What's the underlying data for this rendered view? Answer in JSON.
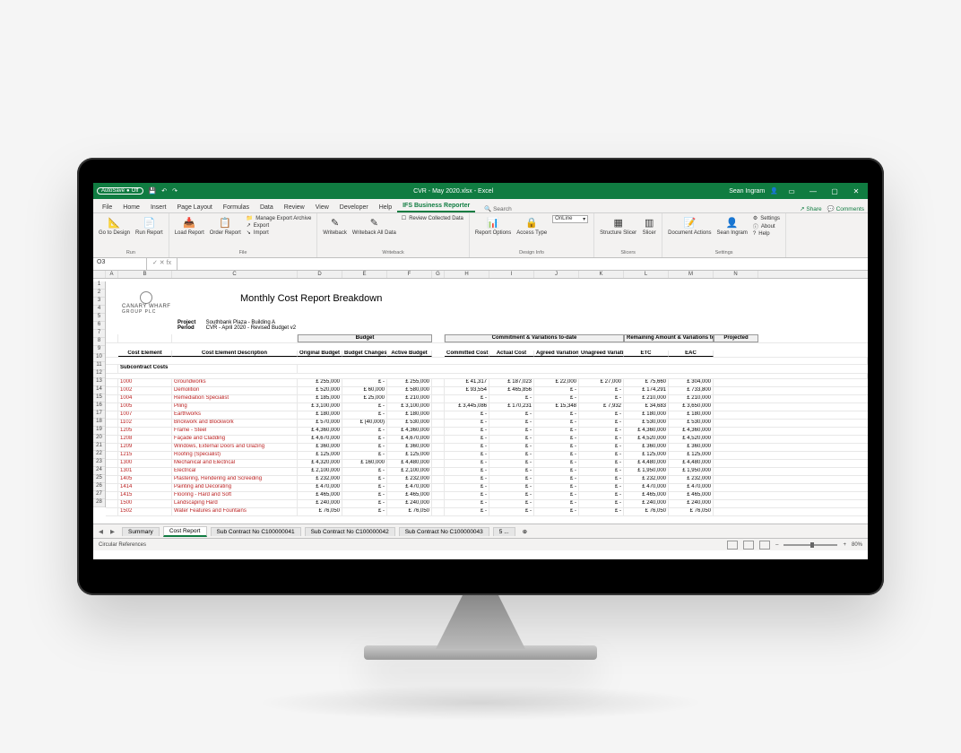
{
  "titlebar": {
    "autosave": "AutoSave",
    "autosave_state": "Off",
    "filename": "CVR - May 2020.xlsx - Excel",
    "user": "Sean Ingram"
  },
  "tabs": [
    "File",
    "Home",
    "Insert",
    "Page Layout",
    "Formulas",
    "Data",
    "Review",
    "View",
    "Developer",
    "Help",
    "IFS Business Reporter"
  ],
  "active_tab": "IFS Business Reporter",
  "search_label": "Search",
  "share_label": "Share",
  "comments_label": "Comments",
  "ribbon_groups": [
    {
      "label": "Run",
      "items": [
        "Go to Design",
        "Run Report"
      ]
    },
    {
      "label": "File",
      "items": [
        "Load Report",
        "Order Report",
        "Manage Export Archive",
        "Export",
        "Import"
      ]
    },
    {
      "label": "Writeback",
      "items": [
        "Writeback",
        "Writeback All Data",
        "Review Collected Data"
      ]
    },
    {
      "label": "Design Info",
      "items": [
        "Report Options",
        "Access Type",
        "OnLine"
      ]
    },
    {
      "label": "Slicers",
      "items": [
        "Structure Slicer",
        "Slicer"
      ]
    },
    {
      "label": "Settings",
      "items": [
        "Document Actions",
        "Sean Ingram",
        "Settings",
        "About",
        "Help"
      ]
    }
  ],
  "namebox": "O3",
  "fx": "fx",
  "columns": [
    "A",
    "B",
    "C",
    "D",
    "E",
    "F",
    "G",
    "H",
    "I",
    "J",
    "K",
    "L",
    "M",
    "N"
  ],
  "logo_name": "CANARY WHARF",
  "logo_sub": "GROUP PLC",
  "report_title": "Monthly Cost Report Breakdown",
  "project_label": "Project",
  "project_value": "Southbank Plaza - Building A",
  "period_label": "Period",
  "period_value": "CVR - April 2020 - Revised Budget v2",
  "group_headers": {
    "budget": "Budget",
    "commitment": "Commitment & Variations to-date",
    "remaining": "Remaining Amount & Variations to go",
    "projected": "Projected"
  },
  "col_headers": {
    "cost_element": "Cost Element",
    "desc": "Cost Element Description",
    "original_budget": "Original Budget",
    "budget_changes": "Budget Changes",
    "active_budget": "Active Budget",
    "committed_cost": "Committed Cost",
    "actual_cost": "Actual Cost",
    "agreed_var": "Agreed Variations",
    "unagreed_var": "Unagreed Variations",
    "etc": "ETC",
    "eac": "EAC"
  },
  "section_label": "Subcontract Costs",
  "currency": "£",
  "rows": [
    {
      "code": "1000",
      "desc": "Groundworks",
      "ob": "255,000",
      "bc": "-",
      "ab": "255,000",
      "cc": "41,317",
      "ac": "187,023",
      "av": "22,000",
      "uv": "27,000",
      "etc": "75,660",
      "eac": "304,000"
    },
    {
      "code": "1002",
      "desc": "Demolition",
      "ob": "520,000",
      "bc": "60,000",
      "ab": "580,000",
      "cc": "93,554",
      "ac": "465,856",
      "av": "-",
      "uv": "-",
      "etc": "174,291",
      "eac": "733,800"
    },
    {
      "code": "1004",
      "desc": "Remediation Specialist",
      "ob": "185,000",
      "bc": "25,000",
      "ab": "210,000",
      "cc": "-",
      "ac": "-",
      "av": "-",
      "uv": "-",
      "etc": "210,000",
      "eac": "210,000"
    },
    {
      "code": "1005",
      "desc": "Piling",
      "ob": "3,100,000",
      "bc": "-",
      "ab": "3,100,000",
      "cc": "3,445,086",
      "ac": "170,231",
      "av": "15,348",
      "uv": "7,932",
      "etc": "34,683",
      "eac": "3,650,000"
    },
    {
      "code": "1007",
      "desc": "Earthworks",
      "ob": "180,000",
      "bc": "-",
      "ab": "180,000",
      "cc": "-",
      "ac": "-",
      "av": "-",
      "uv": "-",
      "etc": "180,000",
      "eac": "180,000"
    },
    {
      "code": "1102",
      "desc": "Brickwork and Blockwork",
      "ob": "570,000",
      "bc": "(40,000)",
      "ab": "530,000",
      "cc": "-",
      "ac": "-",
      "av": "-",
      "uv": "-",
      "etc": "530,000",
      "eac": "530,000"
    },
    {
      "code": "1205",
      "desc": "Frame - Steel",
      "ob": "4,360,000",
      "bc": "-",
      "ab": "4,360,000",
      "cc": "-",
      "ac": "-",
      "av": "-",
      "uv": "-",
      "etc": "4,360,000",
      "eac": "4,360,000"
    },
    {
      "code": "1208",
      "desc": "Façade and Cladding",
      "ob": "4,670,000",
      "bc": "-",
      "ab": "4,670,000",
      "cc": "-",
      "ac": "-",
      "av": "-",
      "uv": "-",
      "etc": "4,520,000",
      "eac": "4,520,000"
    },
    {
      "code": "1209",
      "desc": "Windows, External Doors and Glazing",
      "ob": "360,000",
      "bc": "-",
      "ab": "360,000",
      "cc": "-",
      "ac": "-",
      "av": "-",
      "uv": "-",
      "etc": "360,000",
      "eac": "360,000"
    },
    {
      "code": "1215",
      "desc": "Roofing (Specialist)",
      "ob": "125,000",
      "bc": "-",
      "ab": "125,000",
      "cc": "-",
      "ac": "-",
      "av": "-",
      "uv": "-",
      "etc": "125,000",
      "eac": "125,000"
    },
    {
      "code": "1300",
      "desc": "Mechanical and Electrical",
      "ob": "4,320,000",
      "bc": "160,000",
      "ab": "4,480,000",
      "cc": "-",
      "ac": "-",
      "av": "-",
      "uv": "-",
      "etc": "4,480,000",
      "eac": "4,480,000"
    },
    {
      "code": "1301",
      "desc": "Electrical",
      "ob": "2,100,000",
      "bc": "-",
      "ab": "2,100,000",
      "cc": "-",
      "ac": "-",
      "av": "-",
      "uv": "-",
      "etc": "1,950,000",
      "eac": "1,950,000"
    },
    {
      "code": "1405",
      "desc": "Plastering, Rendering and Screeding",
      "ob": "232,000",
      "bc": "-",
      "ab": "232,000",
      "cc": "-",
      "ac": "-",
      "av": "-",
      "uv": "-",
      "etc": "232,000",
      "eac": "232,000"
    },
    {
      "code": "1414",
      "desc": "Painting and Decorating",
      "ob": "470,000",
      "bc": "-",
      "ab": "470,000",
      "cc": "-",
      "ac": "-",
      "av": "-",
      "uv": "-",
      "etc": "470,000",
      "eac": "470,000"
    },
    {
      "code": "1415",
      "desc": "Flooring - Hard and Soft",
      "ob": "465,000",
      "bc": "-",
      "ab": "465,000",
      "cc": "-",
      "ac": "-",
      "av": "-",
      "uv": "-",
      "etc": "465,000",
      "eac": "465,000"
    },
    {
      "code": "1500",
      "desc": "Landscaping Hard",
      "ob": "240,000",
      "bc": "-",
      "ab": "240,000",
      "cc": "-",
      "ac": "-",
      "av": "-",
      "uv": "-",
      "etc": "240,000",
      "eac": "240,000"
    },
    {
      "code": "1502",
      "desc": "Water Features and Fountains",
      "ob": "76,050",
      "bc": "-",
      "ab": "76,050",
      "cc": "-",
      "ac": "-",
      "av": "-",
      "uv": "-",
      "etc": "76,050",
      "eac": "76,050"
    }
  ],
  "sheet_tabs": [
    "Summary",
    "Cost Report",
    "Sub Contract No C100000041",
    "Sub Contract No C100000042",
    "Sub Contract No C100000043",
    "5 ..."
  ],
  "active_sheet": "Cost Report",
  "status_left": "Circular References",
  "zoom": "80%",
  "colors": {
    "excel_green": "#107c41",
    "ribbon_bg": "#f3f2f1",
    "link_red": "#b22222"
  }
}
